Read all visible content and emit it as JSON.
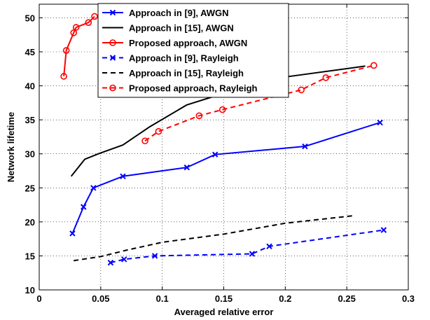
{
  "chart_data": {
    "type": "line",
    "xlabel": "Averaged relative error",
    "ylabel": "Network lifetime",
    "xlim": [
      0,
      0.3
    ],
    "ylim": [
      10,
      52
    ],
    "xticks": [
      0,
      0.05,
      0.1,
      0.15,
      0.2,
      0.25,
      0.3
    ],
    "xtick_labels": [
      "0",
      "0.05",
      "0.1",
      "0.15",
      "0.2",
      "0.25",
      "0.3"
    ],
    "yticks": [
      10,
      15,
      20,
      25,
      30,
      35,
      40,
      45,
      50
    ],
    "ytick_labels": [
      "10",
      "15",
      "20",
      "25",
      "30",
      "35",
      "40",
      "45",
      "50"
    ],
    "grid": true,
    "legend_position": "top-left",
    "series": [
      {
        "name": "Approach in [9], AWGN",
        "color": "#0000ff",
        "dash": "solid",
        "marker": "x",
        "x": [
          0.027,
          0.036,
          0.044,
          0.068,
          0.12,
          0.143,
          0.216,
          0.277
        ],
        "y": [
          18.3,
          22.2,
          25.0,
          26.7,
          28.0,
          29.9,
          31.1,
          34.6
        ]
      },
      {
        "name": "Approach in [15], AWGN",
        "color": "#000000",
        "dash": "solid",
        "marker": "none",
        "x": [
          0.026,
          0.037,
          0.048,
          0.068,
          0.09,
          0.12,
          0.15,
          0.2,
          0.265
        ],
        "y": [
          26.7,
          29.2,
          30.0,
          31.3,
          34.0,
          37.2,
          38.9,
          41.3,
          42.9
        ]
      },
      {
        "name": "Proposed approach, AWGN",
        "color": "#ff0000",
        "dash": "solid",
        "marker": "o",
        "x": [
          0.02,
          0.022,
          0.028,
          0.03,
          0.04,
          0.045
        ],
        "y": [
          41.4,
          45.2,
          47.8,
          48.6,
          49.3,
          50.2
        ]
      },
      {
        "name": "Approach in [9], Rayleigh",
        "color": "#0000ff",
        "dash": "dashed",
        "marker": "x",
        "x": [
          0.058,
          0.069,
          0.094,
          0.173,
          0.187,
          0.28
        ],
        "y": [
          14.0,
          14.5,
          15.0,
          15.3,
          16.4,
          18.8
        ]
      },
      {
        "name": "Approach in [15], Rayleigh",
        "color": "#000000",
        "dash": "dashed",
        "marker": "none",
        "x": [
          0.028,
          0.05,
          0.07,
          0.1,
          0.15,
          0.2,
          0.255
        ],
        "y": [
          14.3,
          14.9,
          15.8,
          17.0,
          18.2,
          19.8,
          20.9
        ]
      },
      {
        "name": "Proposed approach, Rayleigh",
        "color": "#ff0000",
        "dash": "dashed",
        "marker": "o",
        "x": [
          0.086,
          0.097,
          0.13,
          0.149,
          0.213,
          0.233,
          0.272
        ],
        "y": [
          31.9,
          33.3,
          35.6,
          36.5,
          39.4,
          41.2,
          43.0
        ]
      }
    ]
  }
}
